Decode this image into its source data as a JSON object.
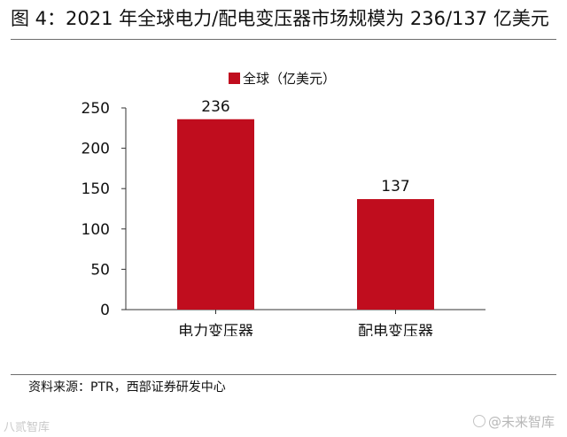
{
  "header": {
    "title": "图 4：2021 年全球电力/配电变压器市场规模为 236/137 亿美元"
  },
  "chart_data": {
    "type": "bar",
    "title": "",
    "categories": [
      "电力变压器",
      "配电变压器"
    ],
    "series": [
      {
        "name": "全球（亿美元）",
        "values": [
          236,
          137
        ]
      }
    ],
    "data_labels": [
      "236",
      "137"
    ],
    "y_ticks": [
      "0",
      "50",
      "100",
      "150",
      "200",
      "250"
    ],
    "ylim": [
      0,
      250
    ],
    "xlabel": "",
    "ylabel": "",
    "grid": false,
    "legend_position": "top",
    "bar_color": "#c00d1e"
  },
  "footer": {
    "source": "资料来源：PTR，西部证券研发中心",
    "watermark_left": "八贰智库",
    "watermark_right": "@未来智库"
  }
}
